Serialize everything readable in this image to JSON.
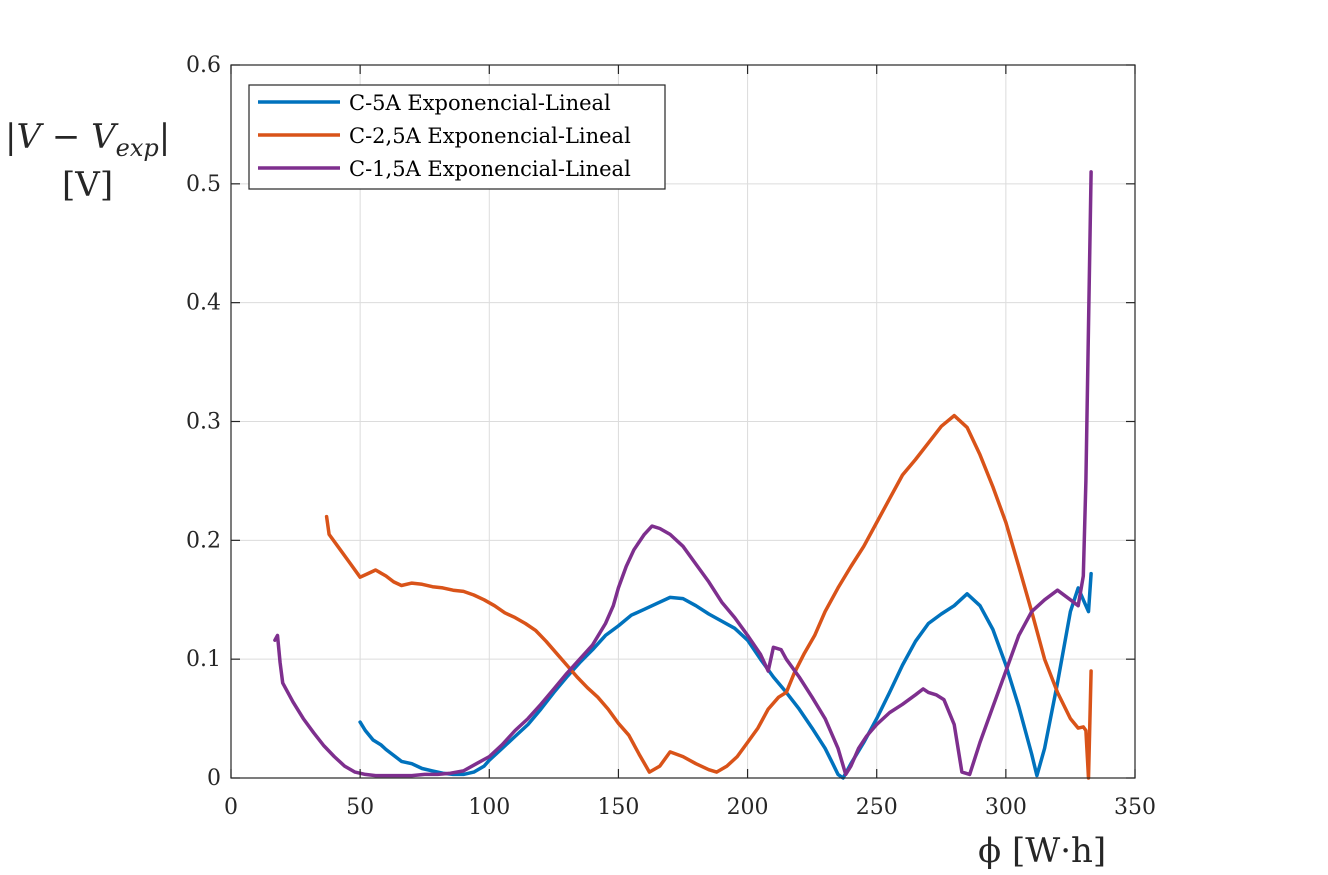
{
  "chart_data": {
    "type": "line",
    "xlabel": "ϕ [W·h]",
    "ylabel": "|V − V",
    "ylabel_sub": "exp",
    "ylabel_tail": "|",
    "ylabel_unit": "[V]",
    "xlim": [
      0,
      350
    ],
    "ylim": [
      0,
      0.6
    ],
    "xticks": [
      0,
      50,
      100,
      150,
      200,
      250,
      300,
      350
    ],
    "xtick_labels": [
      "0",
      "50",
      "100",
      "150",
      "200",
      "250",
      "300",
      "350"
    ],
    "yticks": [
      0,
      0.1,
      0.2,
      0.3,
      0.4,
      0.5,
      0.6
    ],
    "ytick_labels": [
      "0",
      "0.1",
      "0.2",
      "0.3",
      "0.4",
      "0.5",
      "0.6"
    ],
    "grid": true,
    "legend_position": "top-left",
    "series": [
      {
        "name": "C-5A Exponencial-Lineal",
        "color": "#0072BD",
        "x": [
          50,
          52,
          55,
          58,
          60,
          63,
          66,
          70,
          74,
          78,
          82,
          86,
          90,
          94,
          98,
          100,
          105,
          110,
          115,
          120,
          125,
          130,
          135,
          140,
          145,
          150,
          155,
          160,
          165,
          170,
          175,
          180,
          185,
          190,
          195,
          200,
          205,
          210,
          215,
          220,
          225,
          230,
          233,
          235,
          237,
          240,
          245,
          250,
          255,
          260,
          265,
          270,
          275,
          280,
          285,
          290,
          295,
          300,
          305,
          310,
          312,
          315,
          320,
          325,
          328,
          330,
          332,
          333
        ],
        "y": [
          0.047,
          0.04,
          0.032,
          0.028,
          0.024,
          0.019,
          0.014,
          0.012,
          0.008,
          0.006,
          0.004,
          0.003,
          0.003,
          0.005,
          0.01,
          0.015,
          0.025,
          0.035,
          0.045,
          0.058,
          0.072,
          0.085,
          0.097,
          0.108,
          0.12,
          0.128,
          0.137,
          0.142,
          0.147,
          0.152,
          0.151,
          0.145,
          0.138,
          0.132,
          0.126,
          0.116,
          0.1,
          0.085,
          0.072,
          0.058,
          0.042,
          0.025,
          0.012,
          0.003,
          0.0,
          0.012,
          0.03,
          0.05,
          0.072,
          0.095,
          0.115,
          0.13,
          0.138,
          0.145,
          0.155,
          0.145,
          0.125,
          0.095,
          0.06,
          0.02,
          0.002,
          0.025,
          0.08,
          0.14,
          0.16,
          0.15,
          0.14,
          0.172
        ]
      },
      {
        "name": "C-2,5A Exponencial-Lineal",
        "color": "#D95319",
        "x": [
          37,
          38,
          42,
          46,
          50,
          53,
          56,
          60,
          63,
          66,
          70,
          74,
          78,
          82,
          86,
          90,
          94,
          98,
          102,
          106,
          110,
          114,
          118,
          122,
          126,
          130,
          134,
          138,
          142,
          146,
          150,
          154,
          158,
          162,
          166,
          170,
          175,
          180,
          185,
          188,
          192,
          196,
          200,
          204,
          208,
          212,
          215,
          218,
          222,
          226,
          230,
          235,
          240,
          245,
          250,
          255,
          260,
          265,
          270,
          275,
          280,
          285,
          290,
          295,
          300,
          305,
          310,
          315,
          320,
          325,
          328,
          330,
          331,
          332,
          333
        ],
        "y": [
          0.22,
          0.205,
          0.193,
          0.181,
          0.169,
          0.172,
          0.175,
          0.17,
          0.165,
          0.162,
          0.164,
          0.163,
          0.161,
          0.16,
          0.158,
          0.157,
          0.154,
          0.15,
          0.145,
          0.139,
          0.135,
          0.13,
          0.124,
          0.115,
          0.105,
          0.095,
          0.085,
          0.076,
          0.068,
          0.058,
          0.046,
          0.036,
          0.02,
          0.005,
          0.01,
          0.022,
          0.018,
          0.012,
          0.007,
          0.005,
          0.01,
          0.018,
          0.03,
          0.042,
          0.058,
          0.068,
          0.072,
          0.088,
          0.105,
          0.12,
          0.14,
          0.16,
          0.178,
          0.195,
          0.215,
          0.235,
          0.255,
          0.268,
          0.282,
          0.296,
          0.305,
          0.295,
          0.272,
          0.245,
          0.215,
          0.178,
          0.14,
          0.1,
          0.072,
          0.05,
          0.042,
          0.043,
          0.04,
          0.0,
          0.09
        ]
      },
      {
        "name": "C-1,5A Exponencial-Lineal",
        "color": "#7E2F8E",
        "x": [
          17,
          18,
          19,
          20,
          24,
          28,
          32,
          36,
          40,
          44,
          48,
          52,
          56,
          60,
          65,
          70,
          75,
          80,
          85,
          90,
          95,
          100,
          105,
          110,
          115,
          120,
          125,
          130,
          135,
          140,
          145,
          148,
          150,
          153,
          156,
          160,
          163,
          166,
          170,
          175,
          180,
          185,
          190,
          195,
          200,
          205,
          208,
          210,
          213,
          215,
          220,
          225,
          230,
          235,
          238,
          240,
          243,
          246,
          250,
          255,
          260,
          265,
          268,
          270,
          273,
          276,
          280,
          283,
          286,
          290,
          295,
          300,
          305,
          310,
          315,
          320,
          325,
          328,
          330,
          331,
          332,
          333
        ],
        "y": [
          0.116,
          0.12,
          0.097,
          0.08,
          0.064,
          0.05,
          0.038,
          0.027,
          0.018,
          0.01,
          0.005,
          0.003,
          0.002,
          0.002,
          0.002,
          0.002,
          0.003,
          0.003,
          0.004,
          0.006,
          0.012,
          0.018,
          0.028,
          0.04,
          0.05,
          0.062,
          0.075,
          0.088,
          0.1,
          0.112,
          0.13,
          0.145,
          0.16,
          0.178,
          0.192,
          0.205,
          0.212,
          0.21,
          0.205,
          0.195,
          0.18,
          0.165,
          0.148,
          0.135,
          0.12,
          0.104,
          0.09,
          0.11,
          0.108,
          0.1,
          0.085,
          0.068,
          0.05,
          0.025,
          0.003,
          0.01,
          0.025,
          0.035,
          0.045,
          0.055,
          0.062,
          0.07,
          0.075,
          0.072,
          0.07,
          0.066,
          0.045,
          0.005,
          0.003,
          0.03,
          0.06,
          0.09,
          0.12,
          0.14,
          0.15,
          0.158,
          0.15,
          0.145,
          0.17,
          0.25,
          0.38,
          0.51
        ]
      }
    ]
  }
}
